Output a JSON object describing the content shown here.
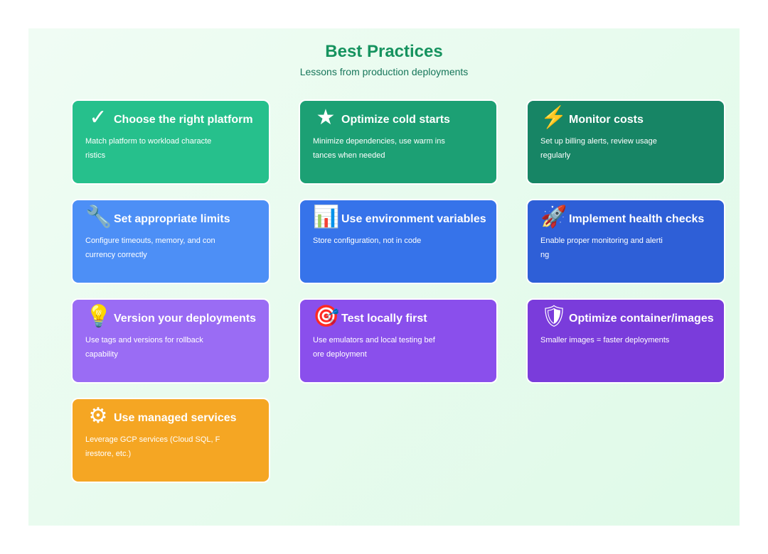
{
  "header": {
    "title": "Best Practices",
    "subtitle": "Lessons from production deployments"
  },
  "cards": [
    {
      "title": "Choose the right platform",
      "icon": "checkmark-icon",
      "glyph": "✓",
      "color": "#26c08c",
      "lines": [
        "Match platform to workload characte",
        "ristics"
      ]
    },
    {
      "title": "Optimize cold starts",
      "icon": "star-icon",
      "glyph": "★",
      "color": "#1ca074",
      "lines": [
        "Minimize dependencies, use warm ins",
        "tances when needed"
      ]
    },
    {
      "title": "Monitor costs",
      "icon": "lightning-icon",
      "glyph": "⚡",
      "color": "#178565",
      "lines": [
        "Set up billing alerts, review usage",
        "regularly"
      ]
    },
    {
      "title": "Set appropriate limits",
      "icon": "wrench-icon",
      "glyph": "🔧",
      "color": "#4d8ff6",
      "lines": [
        "Configure timeouts, memory, and con",
        "currency correctly"
      ]
    },
    {
      "title": "Use environment variables",
      "icon": "bar-chart-icon",
      "glyph": "📊",
      "color": "#3673ea",
      "lines": [
        "Store configuration, not in code"
      ]
    },
    {
      "title": "Implement health checks",
      "icon": "rocket-icon",
      "glyph": "🚀",
      "color": "#2e5fd7",
      "lines": [
        "Enable proper monitoring and alerti",
        "ng"
      ]
    },
    {
      "title": "Version your deployments",
      "icon": "lightbulb-icon",
      "glyph": "💡",
      "color": "#9a6cf4",
      "lines": [
        "Use tags and versions for rollback",
        "capability"
      ]
    },
    {
      "title": "Test locally first",
      "icon": "target-icon",
      "glyph": "🎯",
      "color": "#8a4fec",
      "lines": [
        "Use emulators and local testing bef",
        "ore deployment"
      ]
    },
    {
      "title": "Optimize container/images",
      "icon": "shield-icon",
      "glyph": "🛡",
      "color": "#7a3cdb",
      "lines": [
        "Smaller images = faster deployments"
      ]
    },
    {
      "title": "Use managed services",
      "icon": "gear-icon",
      "glyph": "⚙",
      "color": "#f5a623",
      "lines": [
        "Leverage GCP services (Cloud SQL, F",
        "irestore, etc.)"
      ]
    }
  ]
}
